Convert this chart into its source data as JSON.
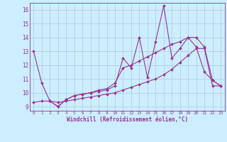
{
  "xlabel": "Windchill (Refroidissement éolien,°C)",
  "bg_color": "#cceeff",
  "grid_color": "#aaccdd",
  "line_color": "#993399",
  "xmin": -0.5,
  "xmax": 23.5,
  "ymin": 8.7,
  "ymax": 16.5,
  "yticks": [
    9,
    10,
    11,
    12,
    13,
    14,
    15,
    16
  ],
  "xticks": [
    0,
    1,
    2,
    3,
    4,
    5,
    6,
    7,
    8,
    9,
    10,
    11,
    12,
    13,
    14,
    15,
    16,
    17,
    18,
    19,
    20,
    21,
    22,
    23
  ],
  "line1_x": [
    0,
    1,
    2,
    3,
    4,
    5,
    6,
    7,
    8,
    9,
    10,
    11,
    12,
    13,
    14,
    15,
    16,
    17,
    18,
    19,
    20,
    21,
    22,
    23
  ],
  "line1_y": [
    13.0,
    10.7,
    9.4,
    9.0,
    9.5,
    9.8,
    9.9,
    10.0,
    10.1,
    10.2,
    10.5,
    12.5,
    11.8,
    14.0,
    11.1,
    13.7,
    16.3,
    12.5,
    13.2,
    14.0,
    13.3,
    11.5,
    10.9,
    10.5
  ],
  "line2_x": [
    0,
    1,
    2,
    3,
    4,
    5,
    6,
    7,
    8,
    9,
    10,
    11,
    12,
    13,
    14,
    15,
    16,
    17,
    18,
    19,
    20,
    21,
    22,
    23
  ],
  "line2_y": [
    9.3,
    9.4,
    9.4,
    9.3,
    9.4,
    9.5,
    9.6,
    9.7,
    9.8,
    9.9,
    10.0,
    10.2,
    10.4,
    10.6,
    10.8,
    11.0,
    11.3,
    11.7,
    12.2,
    12.7,
    13.2,
    13.2,
    10.5,
    10.5
  ],
  "line3_x": [
    2,
    3,
    4,
    5,
    6,
    7,
    8,
    9,
    10,
    11,
    12,
    13,
    14,
    15,
    16,
    17,
    18,
    19,
    20,
    21,
    22,
    23
  ],
  "line3_y": [
    9.4,
    9.0,
    9.5,
    9.8,
    9.9,
    10.0,
    10.2,
    10.3,
    10.7,
    11.8,
    12.0,
    12.3,
    12.6,
    12.9,
    13.2,
    13.5,
    13.7,
    14.0,
    14.0,
    13.3,
    10.9,
    10.5
  ]
}
